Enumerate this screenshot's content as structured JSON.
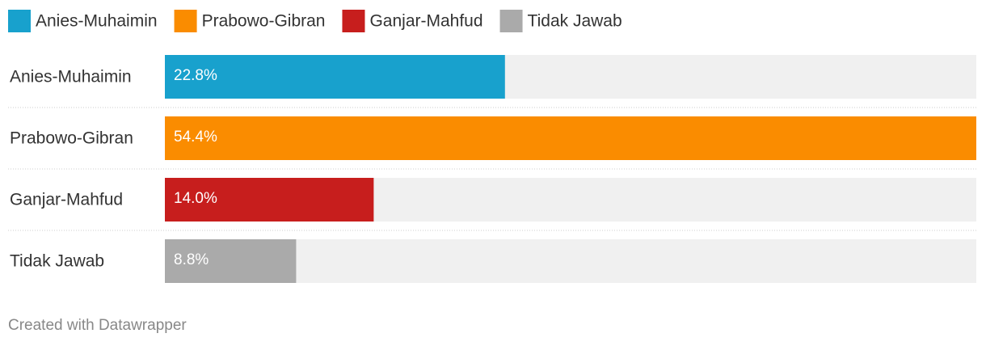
{
  "chart_data": {
    "type": "bar",
    "orientation": "horizontal",
    "categories": [
      "Anies-Muhaimin",
      "Prabowo-Gibran",
      "Ganjar-Mahfud",
      "Tidak Jawab"
    ],
    "values": [
      22.8,
      54.4,
      14.0,
      8.8
    ],
    "value_labels": [
      "22.8%",
      "54.4%",
      "14.0%",
      "8.8%"
    ],
    "colors": [
      "#18a1cd",
      "#fa8c00",
      "#c71e1d",
      "#aaaaaa"
    ],
    "xlim": [
      0,
      54.4
    ],
    "legend": "top-left",
    "footer": "Created with Datawrapper"
  }
}
